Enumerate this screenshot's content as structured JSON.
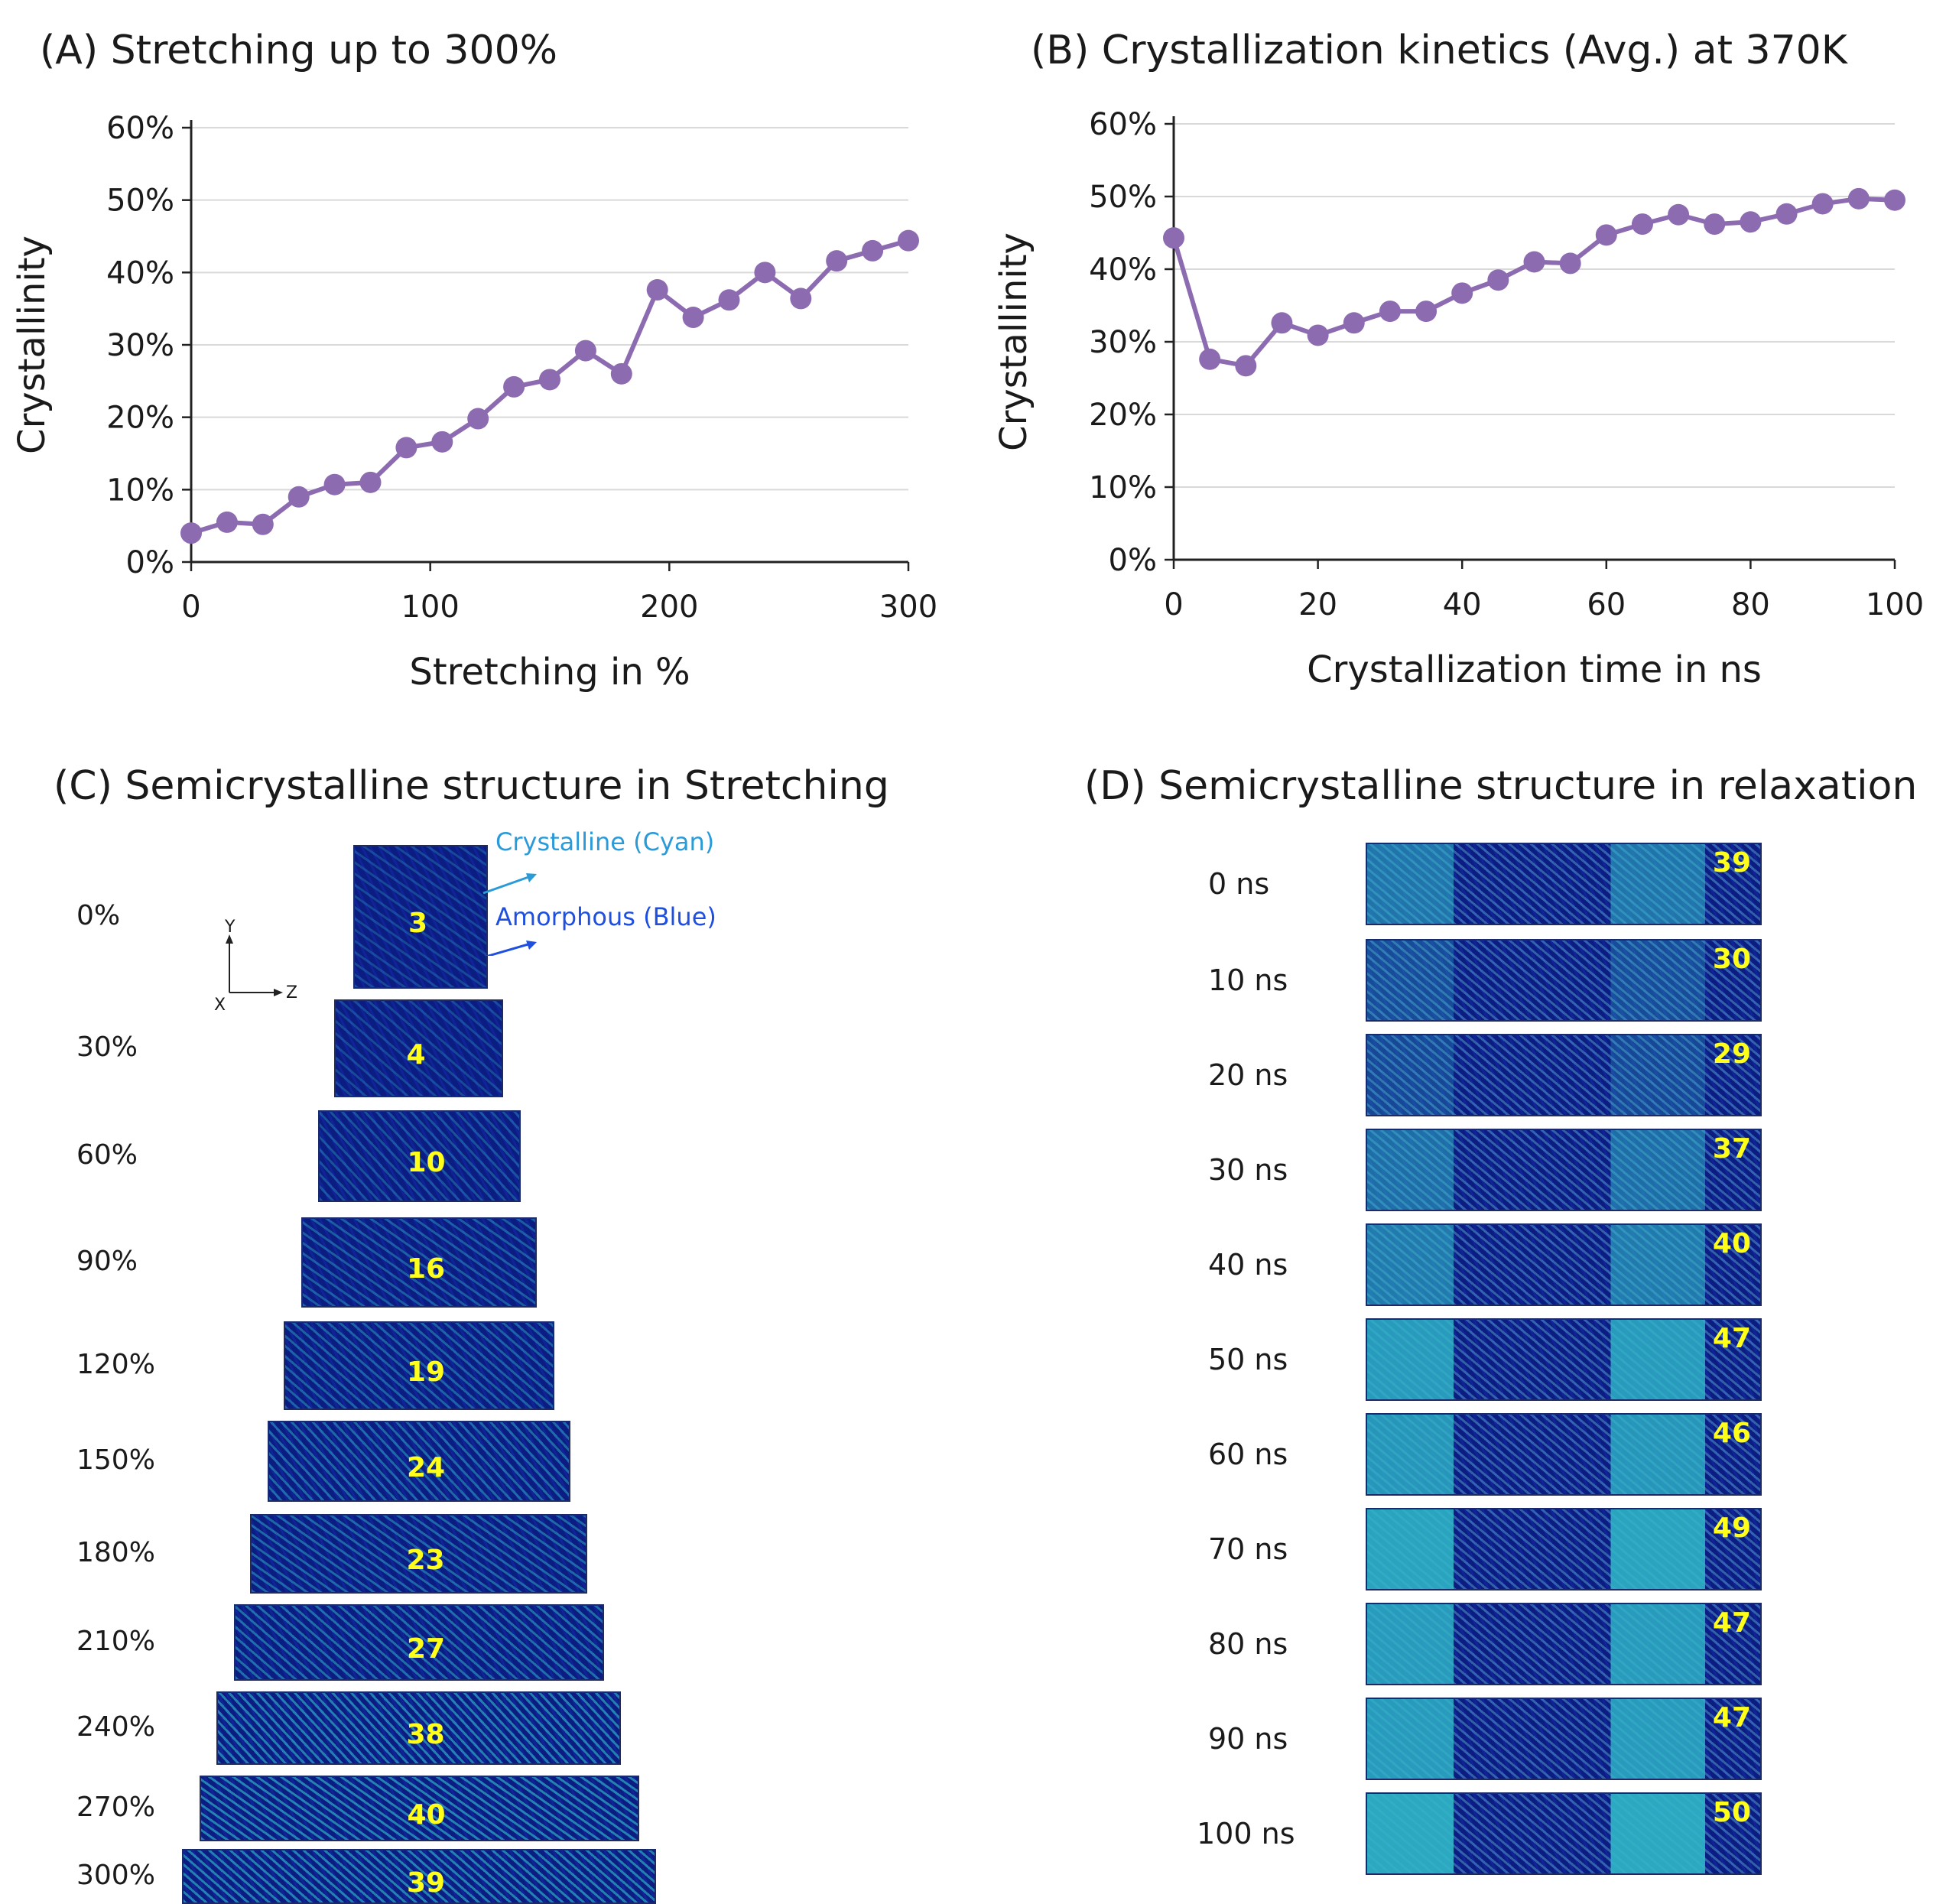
{
  "chart_data": [
    {
      "type": "line",
      "title": "(A) Stretching up to 300%",
      "xlabel": "Stretching in %",
      "ylabel": "Crystallinity",
      "xlim": [
        0,
        300
      ],
      "ylim": [
        0,
        0.6
      ],
      "xticks": [
        "0",
        "100",
        "200",
        "300"
      ],
      "yticks": [
        "0%",
        "10%",
        "20%",
        "30%",
        "40%",
        "50%",
        "60%"
      ],
      "grid": true,
      "color": "#8c6bb1",
      "series": [
        {
          "x": [
            0,
            15,
            30,
            45,
            60,
            75,
            90,
            105,
            120,
            135,
            150,
            165,
            180,
            195,
            210,
            225,
            240,
            255,
            270,
            285,
            300
          ],
          "y": [
            0.04,
            0.055,
            0.052,
            0.09,
            0.107,
            0.11,
            0.158,
            0.166,
            0.198,
            0.242,
            0.252,
            0.292,
            0.26,
            0.376,
            0.338,
            0.362,
            0.4,
            0.364,
            0.416,
            0.43,
            0.444
          ]
        }
      ]
    },
    {
      "type": "line",
      "title": "(B) Crystallization kinetics (Avg.) at 370K",
      "xlabel": "Crystallization time in ns",
      "ylabel": "Crystallinity",
      "xlim": [
        0,
        100
      ],
      "ylim": [
        0,
        0.6
      ],
      "xticks": [
        "0",
        "20",
        "40",
        "60",
        "80",
        "100"
      ],
      "yticks": [
        "0%",
        "10%",
        "20%",
        "30%",
        "40%",
        "50%",
        "60%"
      ],
      "grid": true,
      "color": "#8c6bb1",
      "series": [
        {
          "x": [
            0,
            5,
            10,
            15,
            20,
            25,
            30,
            35,
            40,
            45,
            50,
            55,
            60,
            65,
            70,
            75,
            80,
            85,
            90,
            95,
            100
          ],
          "y": [
            0.443,
            0.276,
            0.267,
            0.326,
            0.309,
            0.326,
            0.342,
            0.342,
            0.367,
            0.385,
            0.41,
            0.408,
            0.447,
            0.462,
            0.475,
            0.462,
            0.465,
            0.476,
            0.49,
            0.497,
            0.495
          ]
        }
      ]
    }
  ],
  "panel_c": {
    "title": "(C) Semicrystalline structure in Stretching",
    "legend_crystalline": "Crystalline (Cyan)",
    "legend_amorphous": "Amorphous (Blue)",
    "axis_y": "Y",
    "axis_x": "X",
    "axis_z": "Z",
    "rows": [
      {
        "label": "0%",
        "value": "3"
      },
      {
        "label": "30%",
        "value": "4"
      },
      {
        "label": "60%",
        "value": "10"
      },
      {
        "label": "90%",
        "value": "16"
      },
      {
        "label": "120%",
        "value": "19"
      },
      {
        "label": "150%",
        "value": "24"
      },
      {
        "label": "180%",
        "value": "23"
      },
      {
        "label": "210%",
        "value": "27"
      },
      {
        "label": "240%",
        "value": "38"
      },
      {
        "label": "270%",
        "value": "40"
      },
      {
        "label": "300%",
        "value": "39"
      }
    ]
  },
  "panel_d": {
    "title": "(D) Semicrystalline structure in relaxation",
    "rows": [
      {
        "label": "0 ns",
        "value": "39"
      },
      {
        "label": "10 ns",
        "value": "30"
      },
      {
        "label": "20 ns",
        "value": "29"
      },
      {
        "label": "30 ns",
        "value": "37"
      },
      {
        "label": "40 ns",
        "value": "40"
      },
      {
        "label": "50 ns",
        "value": "47"
      },
      {
        "label": "60 ns",
        "value": "46"
      },
      {
        "label": "70 ns",
        "value": "49"
      },
      {
        "label": "80 ns",
        "value": "47"
      },
      {
        "label": "90 ns",
        "value": "47"
      },
      {
        "label": "100 ns",
        "value": "50"
      }
    ]
  },
  "colors": {
    "line": "#8c6bb1",
    "amorphous": "#0c1d82",
    "crystalline": "#2fb7c8",
    "number": "#ffff1a",
    "legend_crystalline": "#2a9ad8",
    "legend_amorphous": "#1f4fe0"
  }
}
